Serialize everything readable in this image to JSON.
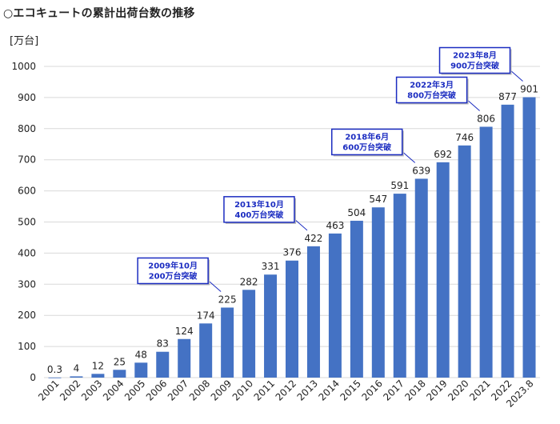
{
  "title": "○エコキュートの累計出荷台数の推移",
  "chart_data": {
    "type": "bar",
    "ylabel": "[万台]",
    "ylim": [
      0,
      1000
    ],
    "yticks": [
      0,
      100,
      200,
      300,
      400,
      500,
      600,
      700,
      800,
      900,
      1000
    ],
    "grid": true,
    "bar_color": "#4472c4",
    "categories": [
      "2001",
      "2002",
      "2003",
      "2004",
      "2005",
      "2006",
      "2007",
      "2008",
      "2009",
      "2010",
      "2011",
      "2012",
      "2013",
      "2014",
      "2015",
      "2016",
      "2017",
      "2018",
      "2019",
      "2020",
      "2021",
      "2022",
      "2023.8"
    ],
    "values": [
      0.3,
      4,
      12,
      25,
      48,
      83,
      124,
      174,
      225,
      282,
      331,
      376,
      422,
      463,
      504,
      547,
      591,
      639,
      692,
      746,
      806,
      877,
      901
    ],
    "annotations": [
      {
        "category": "2009",
        "lines": [
          "2009年10月",
          "200万台突破"
        ]
      },
      {
        "category": "2013",
        "lines": [
          "2013年10月",
          "400万台突破"
        ]
      },
      {
        "category": "2018",
        "lines": [
          "2018年6月",
          "600万台突破"
        ]
      },
      {
        "category": "2021",
        "lines": [
          "2022年3月",
          "800万台突破"
        ]
      },
      {
        "category": "2023.8",
        "lines": [
          "2023年8月",
          "900万台突破"
        ]
      }
    ],
    "annotation_color": "#1b2cc1"
  }
}
